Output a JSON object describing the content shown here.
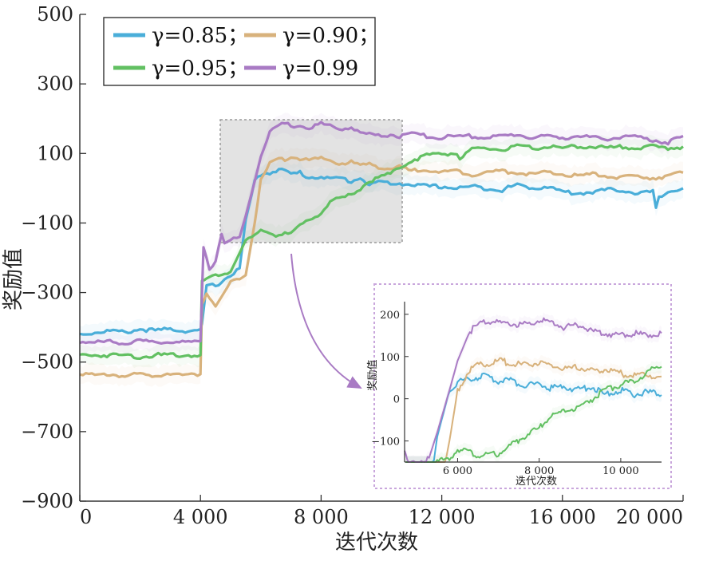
{
  "chart_data": {
    "type": "line",
    "xlabel": "迭代次数",
    "ylabel": "奖励值",
    "xlim": [
      0,
      20000
    ],
    "ylim": [
      -900,
      500
    ],
    "xticks": [
      "0",
      "4 000",
      "8 000",
      "12 000",
      "16 000",
      "20 000"
    ],
    "yticks": [
      "500",
      "300",
      "100",
      "−100",
      "−300",
      "−500",
      "−700",
      "−900"
    ],
    "legend": {
      "position": "top-left",
      "entries": [
        "γ=0.85；",
        "γ=0.90；",
        "γ=0.95；",
        "γ=0.99"
      ]
    },
    "series": [
      {
        "name": "γ=0.85",
        "color": "#4aaed9",
        "x": [
          0,
          500,
          1000,
          1500,
          2000,
          2500,
          3000,
          3500,
          4000,
          4050,
          4200,
          4500,
          5000,
          5300,
          5500,
          5800,
          6000,
          6300,
          6600,
          6800,
          7000,
          7300,
          7600,
          8000,
          8300,
          8600,
          9000,
          9300,
          9600,
          10000,
          10300,
          10600,
          11000,
          11500,
          12000,
          12500,
          13000,
          13500,
          14000,
          14500,
          15000,
          15500,
          16000,
          16500,
          17000,
          17500,
          18000,
          18500,
          19000,
          19100,
          19200,
          19500,
          20000
        ],
        "y": [
          -420,
          -415,
          -410,
          -415,
          -405,
          -410,
          -405,
          -410,
          -410,
          -390,
          -280,
          -280,
          -250,
          -230,
          -90,
          20,
          40,
          45,
          55,
          50,
          40,
          45,
          30,
          35,
          25,
          30,
          20,
          30,
          10,
          20,
          10,
          15,
          10,
          5,
          5,
          0,
          5,
          0,
          -5,
          10,
          0,
          5,
          -10,
          -15,
          -10,
          -5,
          -5,
          -15,
          -10,
          -60,
          -30,
          -10,
          0
        ]
      },
      {
        "name": "γ=0.90",
        "color": "#d8b27c",
        "x": [
          0,
          500,
          1000,
          1500,
          2000,
          2500,
          3000,
          3500,
          4000,
          4050,
          4200,
          4500,
          5000,
          5500,
          5800,
          6000,
          6300,
          6600,
          6800,
          7000,
          7300,
          7600,
          8000,
          8300,
          8600,
          9000,
          9300,
          9600,
          10000,
          10300,
          10600,
          11000,
          11500,
          12000,
          12500,
          13000,
          13500,
          14000,
          14500,
          15000,
          15500,
          16000,
          16500,
          17000,
          17500,
          18000,
          18500,
          19000,
          19500,
          20000
        ],
        "y": [
          -530,
          -540,
          -535,
          -540,
          -535,
          -540,
          -530,
          -540,
          -535,
          -330,
          -300,
          -340,
          -270,
          -250,
          -100,
          20,
          70,
          85,
          80,
          90,
          85,
          80,
          85,
          80,
          70,
          75,
          65,
          70,
          60,
          55,
          60,
          50,
          55,
          45,
          50,
          40,
          45,
          50,
          45,
          40,
          45,
          40,
          35,
          40,
          35,
          30,
          35,
          30,
          35,
          45
        ]
      },
      {
        "name": "γ=0.95",
        "color": "#62c062",
        "x": [
          0,
          500,
          1000,
          1500,
          2000,
          2500,
          3000,
          3500,
          4000,
          4050,
          4200,
          4500,
          5000,
          5500,
          5800,
          6000,
          6500,
          7000,
          7300,
          7600,
          8000,
          8300,
          8600,
          9000,
          9300,
          9600,
          10000,
          10300,
          10600,
          11000,
          11500,
          12000,
          12500,
          12600,
          13000,
          13500,
          14000,
          14500,
          15000,
          15500,
          16000,
          16500,
          17000,
          17500,
          18000,
          18500,
          19000,
          19500,
          20000
        ],
        "y": [
          -480,
          -480,
          -480,
          -480,
          -485,
          -480,
          -480,
          -480,
          -480,
          -270,
          -260,
          -250,
          -240,
          -150,
          -140,
          -120,
          -135,
          -130,
          -110,
          -90,
          -70,
          -40,
          -30,
          -20,
          0,
          20,
          35,
          40,
          60,
          80,
          95,
          100,
          100,
          85,
          110,
          115,
          110,
          120,
          115,
          120,
          115,
          120,
          120,
          115,
          120,
          115,
          120,
          115,
          120
        ]
      },
      {
        "name": "γ=0.99",
        "color": "#a97bc4",
        "x": [
          0,
          500,
          1000,
          1500,
          2000,
          2500,
          3000,
          3500,
          4000,
          4100,
          4300,
          4500,
          4700,
          4800,
          5000,
          5300,
          5500,
          5800,
          6000,
          6300,
          6600,
          6800,
          7000,
          7300,
          7600,
          8000,
          8300,
          8600,
          9000,
          9300,
          9600,
          10000,
          10300,
          10600,
          11000,
          11500,
          12000,
          12500,
          13000,
          13500,
          14000,
          14500,
          15000,
          15500,
          16000,
          16500,
          17000,
          17500,
          18000,
          18500,
          19000,
          19500,
          20000
        ],
        "y": [
          -440,
          -445,
          -440,
          -445,
          -440,
          -445,
          -440,
          -445,
          -440,
          -170,
          -230,
          -210,
          -130,
          -160,
          -150,
          -140,
          -80,
          20,
          90,
          160,
          180,
          185,
          180,
          180,
          175,
          185,
          180,
          170,
          175,
          160,
          155,
          150,
          155,
          150,
          155,
          150,
          145,
          150,
          150,
          145,
          150,
          155,
          145,
          150,
          145,
          150,
          145,
          140,
          150,
          145,
          140,
          130,
          150
        ]
      }
    ],
    "inset": {
      "ylabel": "奖励值",
      "xlabel": "迭代次数",
      "xlim": [
        4700,
        11000
      ],
      "ylim": [
        -150,
        230
      ],
      "xticks": [
        "6 000",
        "8 000",
        "10 000"
      ],
      "yticks": [
        "200",
        "100",
        "0",
        "−100"
      ]
    }
  }
}
